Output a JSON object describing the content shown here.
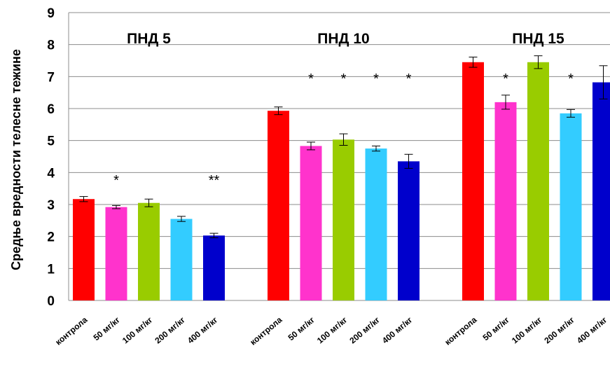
{
  "chart_data": {
    "type": "bar",
    "ylabel": "Средње вредности телесне тежине",
    "ylim": [
      0,
      9
    ],
    "yticks": [
      "0",
      "1",
      "2",
      "3",
      "4",
      "5",
      "6",
      "7",
      "8",
      "9"
    ],
    "grid": true,
    "legend": "none",
    "categories": [
      "контрола",
      "50 мг/кг",
      "100 мг/кг",
      "200 мг/кг",
      "400 мг/кг"
    ],
    "colors": [
      "#ff0000",
      "#ff33cc",
      "#99cc00",
      "#33ccff",
      "#0000cc"
    ],
    "groups": [
      {
        "name": "ПНД 5",
        "values": [
          3.17,
          2.92,
          3.05,
          2.55,
          2.03
        ],
        "errors": [
          0.08,
          0.05,
          0.12,
          0.08,
          0.07
        ],
        "significance": [
          "",
          "*",
          "",
          "",
          "**"
        ]
      },
      {
        "name": "ПНД 10",
        "values": [
          5.93,
          4.83,
          5.03,
          4.75,
          4.35
        ],
        "errors": [
          0.12,
          0.12,
          0.18,
          0.08,
          0.22
        ],
        "significance": [
          "",
          "*",
          "*",
          "*",
          "*"
        ]
      },
      {
        "name": "ПНД 15",
        "values": [
          7.45,
          6.2,
          7.45,
          5.85,
          6.82
        ],
        "errors": [
          0.16,
          0.22,
          0.2,
          0.12,
          0.52
        ],
        "significance": [
          "",
          "*",
          "",
          "*",
          ""
        ]
      }
    ]
  }
}
